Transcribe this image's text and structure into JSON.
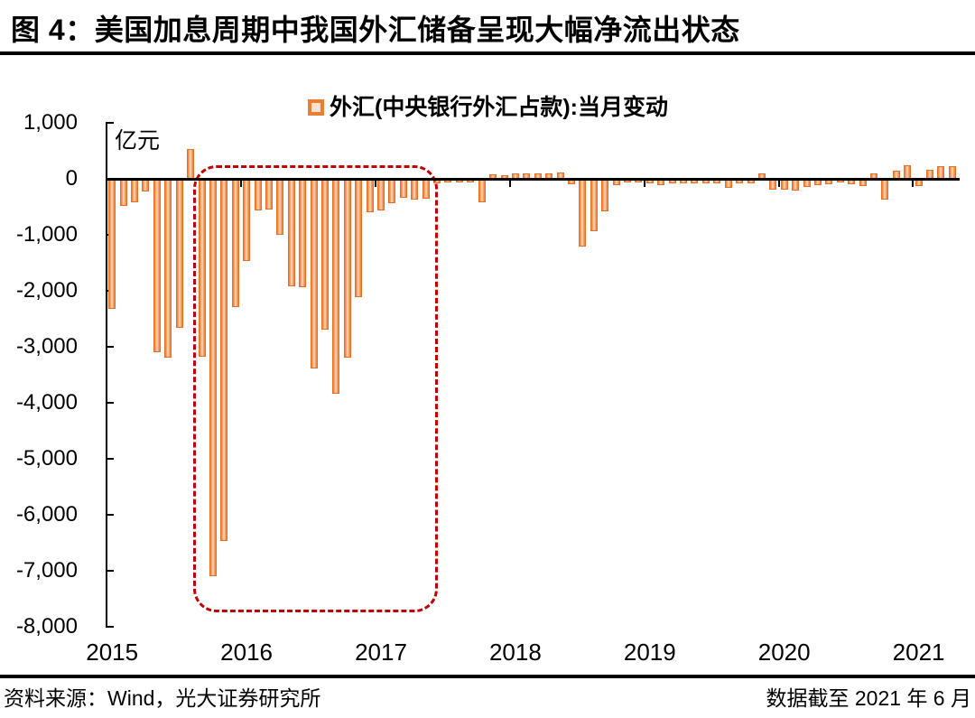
{
  "title": "图 4：美国加息周期中我国外汇储备呈现大幅净流出状态",
  "legend": {
    "label": "外汇(中央银行外汇占款):当月变动",
    "marker_color": "#ED7D31"
  },
  "unit_label": "亿元",
  "footer": {
    "source": "资料来源：Wind，光大证券研究所",
    "cutoff": "数据截至 2021 年 6 月"
  },
  "colors": {
    "bar_orange": "#ED7D31",
    "bar_border": "#E56F24",
    "highlight_box_red": "#C00000",
    "axis_black": "#000000"
  },
  "chart_data": {
    "type": "bar",
    "title": "外汇(中央银行外汇占款):当月变动",
    "ylabel": "亿元",
    "ylim": [
      -8000,
      1000
    ],
    "ytick_interval": 1000,
    "yticks": [
      1000,
      0,
      -1000,
      -2000,
      -3000,
      -4000,
      -5000,
      -6000,
      -7000,
      -8000
    ],
    "xtick_labels": [
      "2015",
      "2016",
      "2017",
      "2018",
      "2019",
      "2020",
      "2021"
    ],
    "legend_position": "top-center",
    "grid": false,
    "months": [
      "2015-03",
      "2015-04",
      "2015-05",
      "2015-06",
      "2015-07",
      "2015-08",
      "2015-09",
      "2015-10",
      "2015-11",
      "2015-12",
      "2016-01",
      "2016-02",
      "2016-03",
      "2016-04",
      "2016-05",
      "2016-06",
      "2016-07",
      "2016-08",
      "2016-09",
      "2016-10",
      "2016-11",
      "2016-12",
      "2017-01",
      "2017-02",
      "2017-03",
      "2017-04",
      "2017-05",
      "2017-06",
      "2017-07",
      "2017-08",
      "2017-09",
      "2017-10",
      "2017-11",
      "2017-12",
      "2018-01",
      "2018-02",
      "2018-03",
      "2018-04",
      "2018-05",
      "2018-06",
      "2018-07",
      "2018-08",
      "2018-09",
      "2018-10",
      "2018-11",
      "2018-12",
      "2019-01",
      "2019-02",
      "2019-03",
      "2019-04",
      "2019-05",
      "2019-06",
      "2019-07",
      "2019-08",
      "2019-09",
      "2019-10",
      "2019-11",
      "2019-12",
      "2020-01",
      "2020-02",
      "2020-03",
      "2020-04",
      "2020-05",
      "2020-06",
      "2020-07",
      "2020-08",
      "2020-09",
      "2020-10",
      "2020-11",
      "2020-12",
      "2021-01",
      "2021-02",
      "2021-03",
      "2021-04",
      "2021-05",
      "2021-06"
    ],
    "values": [
      -2307,
      -459,
      -410,
      -204,
      -3080,
      -3184,
      -2641,
      533,
      -3158,
      -7082,
      -6445,
      -2279,
      -1448,
      -544,
      -537,
      -977,
      -1905,
      -1918,
      -3375,
      -2678,
      -3827,
      -3178,
      -2088,
      -581,
      -547,
      -420,
      -320,
      -350,
      -340,
      -60,
      -50,
      -45,
      -45,
      -400,
      85,
      70,
      90,
      100,
      105,
      90,
      115,
      -80,
      -1194,
      -916,
      -571,
      -90,
      -50,
      -40,
      -60,
      -100,
      -60,
      -60,
      -70,
      -60,
      -60,
      -140,
      -60,
      -60,
      90,
      -175,
      -180,
      -200,
      -130,
      -90,
      -85,
      -45,
      -85,
      -110,
      105,
      -355,
      140,
      240,
      -110,
      170,
      230,
      230
    ],
    "annotation_box": {
      "from": "2015-11",
      "to": "2017-07",
      "style": "dashed-rounded-rectangle",
      "color": "#C00000"
    }
  }
}
